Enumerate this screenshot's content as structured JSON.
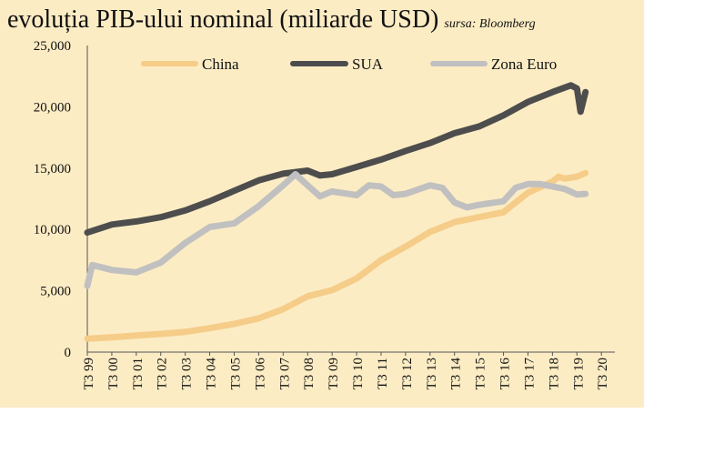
{
  "header": {
    "title": "evoluția PIB-ului nominal (miliarde USD)",
    "source": "sursa: Bloomberg"
  },
  "chart_data": {
    "type": "line",
    "title": "evoluția PIB-ului nominal (miliarde USD)",
    "subtitle": "sursa: Bloomberg",
    "xlabel": "",
    "ylabel": "",
    "ylim": [
      0,
      25000
    ],
    "y_ticks": [
      "0",
      "5,000",
      "10,000",
      "15,000",
      "20,000",
      "25,000"
    ],
    "x_ticks": [
      "T3 99",
      "T3 00",
      "T3 01",
      "T3 02",
      "T3 03",
      "T3 04",
      "T3 05",
      "T3 06",
      "T3 07",
      "T3 08",
      "T3 09",
      "T3 10",
      "T3 11",
      "T3 12",
      "T3 13",
      "T3 14",
      "T3 15",
      "T3 16",
      "T3 17",
      "T3 18",
      "T3 19",
      "T3 20"
    ],
    "grid": false,
    "legend_position": "top",
    "series": [
      {
        "name": "China",
        "color": "#f5cc88",
        "points": [
          [
            0,
            1100
          ],
          [
            1,
            1200
          ],
          [
            2,
            1350
          ],
          [
            3,
            1480
          ],
          [
            4,
            1650
          ],
          [
            5,
            1950
          ],
          [
            6,
            2300
          ],
          [
            7,
            2750
          ],
          [
            8,
            3500
          ],
          [
            9,
            4550
          ],
          [
            10,
            5050
          ],
          [
            11,
            6000
          ],
          [
            12,
            7500
          ],
          [
            13,
            8600
          ],
          [
            14,
            9800
          ],
          [
            15,
            10600
          ],
          [
            16,
            11000
          ],
          [
            17,
            11400
          ],
          [
            18,
            13000
          ],
          [
            19,
            13900
          ],
          [
            19.25,
            14300
          ],
          [
            19.5,
            14150
          ],
          [
            20,
            14300
          ],
          [
            20.35,
            14600
          ]
        ]
      },
      {
        "name": "SUA",
        "color": "#4d4d4d",
        "points": [
          [
            0,
            9750
          ],
          [
            1,
            10400
          ],
          [
            2,
            10650
          ],
          [
            3,
            11000
          ],
          [
            4,
            11550
          ],
          [
            5,
            12300
          ],
          [
            6,
            13150
          ],
          [
            7,
            14000
          ],
          [
            8,
            14550
          ],
          [
            9,
            14800
          ],
          [
            9.5,
            14400
          ],
          [
            10,
            14500
          ],
          [
            11,
            15100
          ],
          [
            12,
            15700
          ],
          [
            13,
            16400
          ],
          [
            14,
            17050
          ],
          [
            15,
            17850
          ],
          [
            16,
            18400
          ],
          [
            17,
            19300
          ],
          [
            18,
            20400
          ],
          [
            19,
            21200
          ],
          [
            19.75,
            21750
          ],
          [
            20,
            21500
          ],
          [
            20.15,
            19600
          ],
          [
            20.35,
            21200
          ]
        ]
      },
      {
        "name": "Zona Euro",
        "color": "#c0c0c0",
        "points": [
          [
            0,
            5400
          ],
          [
            0.2,
            7100
          ],
          [
            1,
            6700
          ],
          [
            2,
            6500
          ],
          [
            3,
            7300
          ],
          [
            4,
            8900
          ],
          [
            5,
            10200
          ],
          [
            6,
            10500
          ],
          [
            7,
            11900
          ],
          [
            8,
            13600
          ],
          [
            8.5,
            14500
          ],
          [
            9,
            13600
          ],
          [
            9.5,
            12700
          ],
          [
            10,
            13100
          ],
          [
            11,
            12800
          ],
          [
            11.5,
            13600
          ],
          [
            12,
            13500
          ],
          [
            12.5,
            12800
          ],
          [
            13,
            12900
          ],
          [
            14,
            13600
          ],
          [
            14.5,
            13400
          ],
          [
            15,
            12200
          ],
          [
            15.5,
            11800
          ],
          [
            16,
            12000
          ],
          [
            17,
            12300
          ],
          [
            17.5,
            13400
          ],
          [
            18,
            13700
          ],
          [
            18.5,
            13700
          ],
          [
            19,
            13500
          ],
          [
            19.5,
            13300
          ],
          [
            20,
            12850
          ],
          [
            20.35,
            12900
          ]
        ]
      }
    ]
  }
}
